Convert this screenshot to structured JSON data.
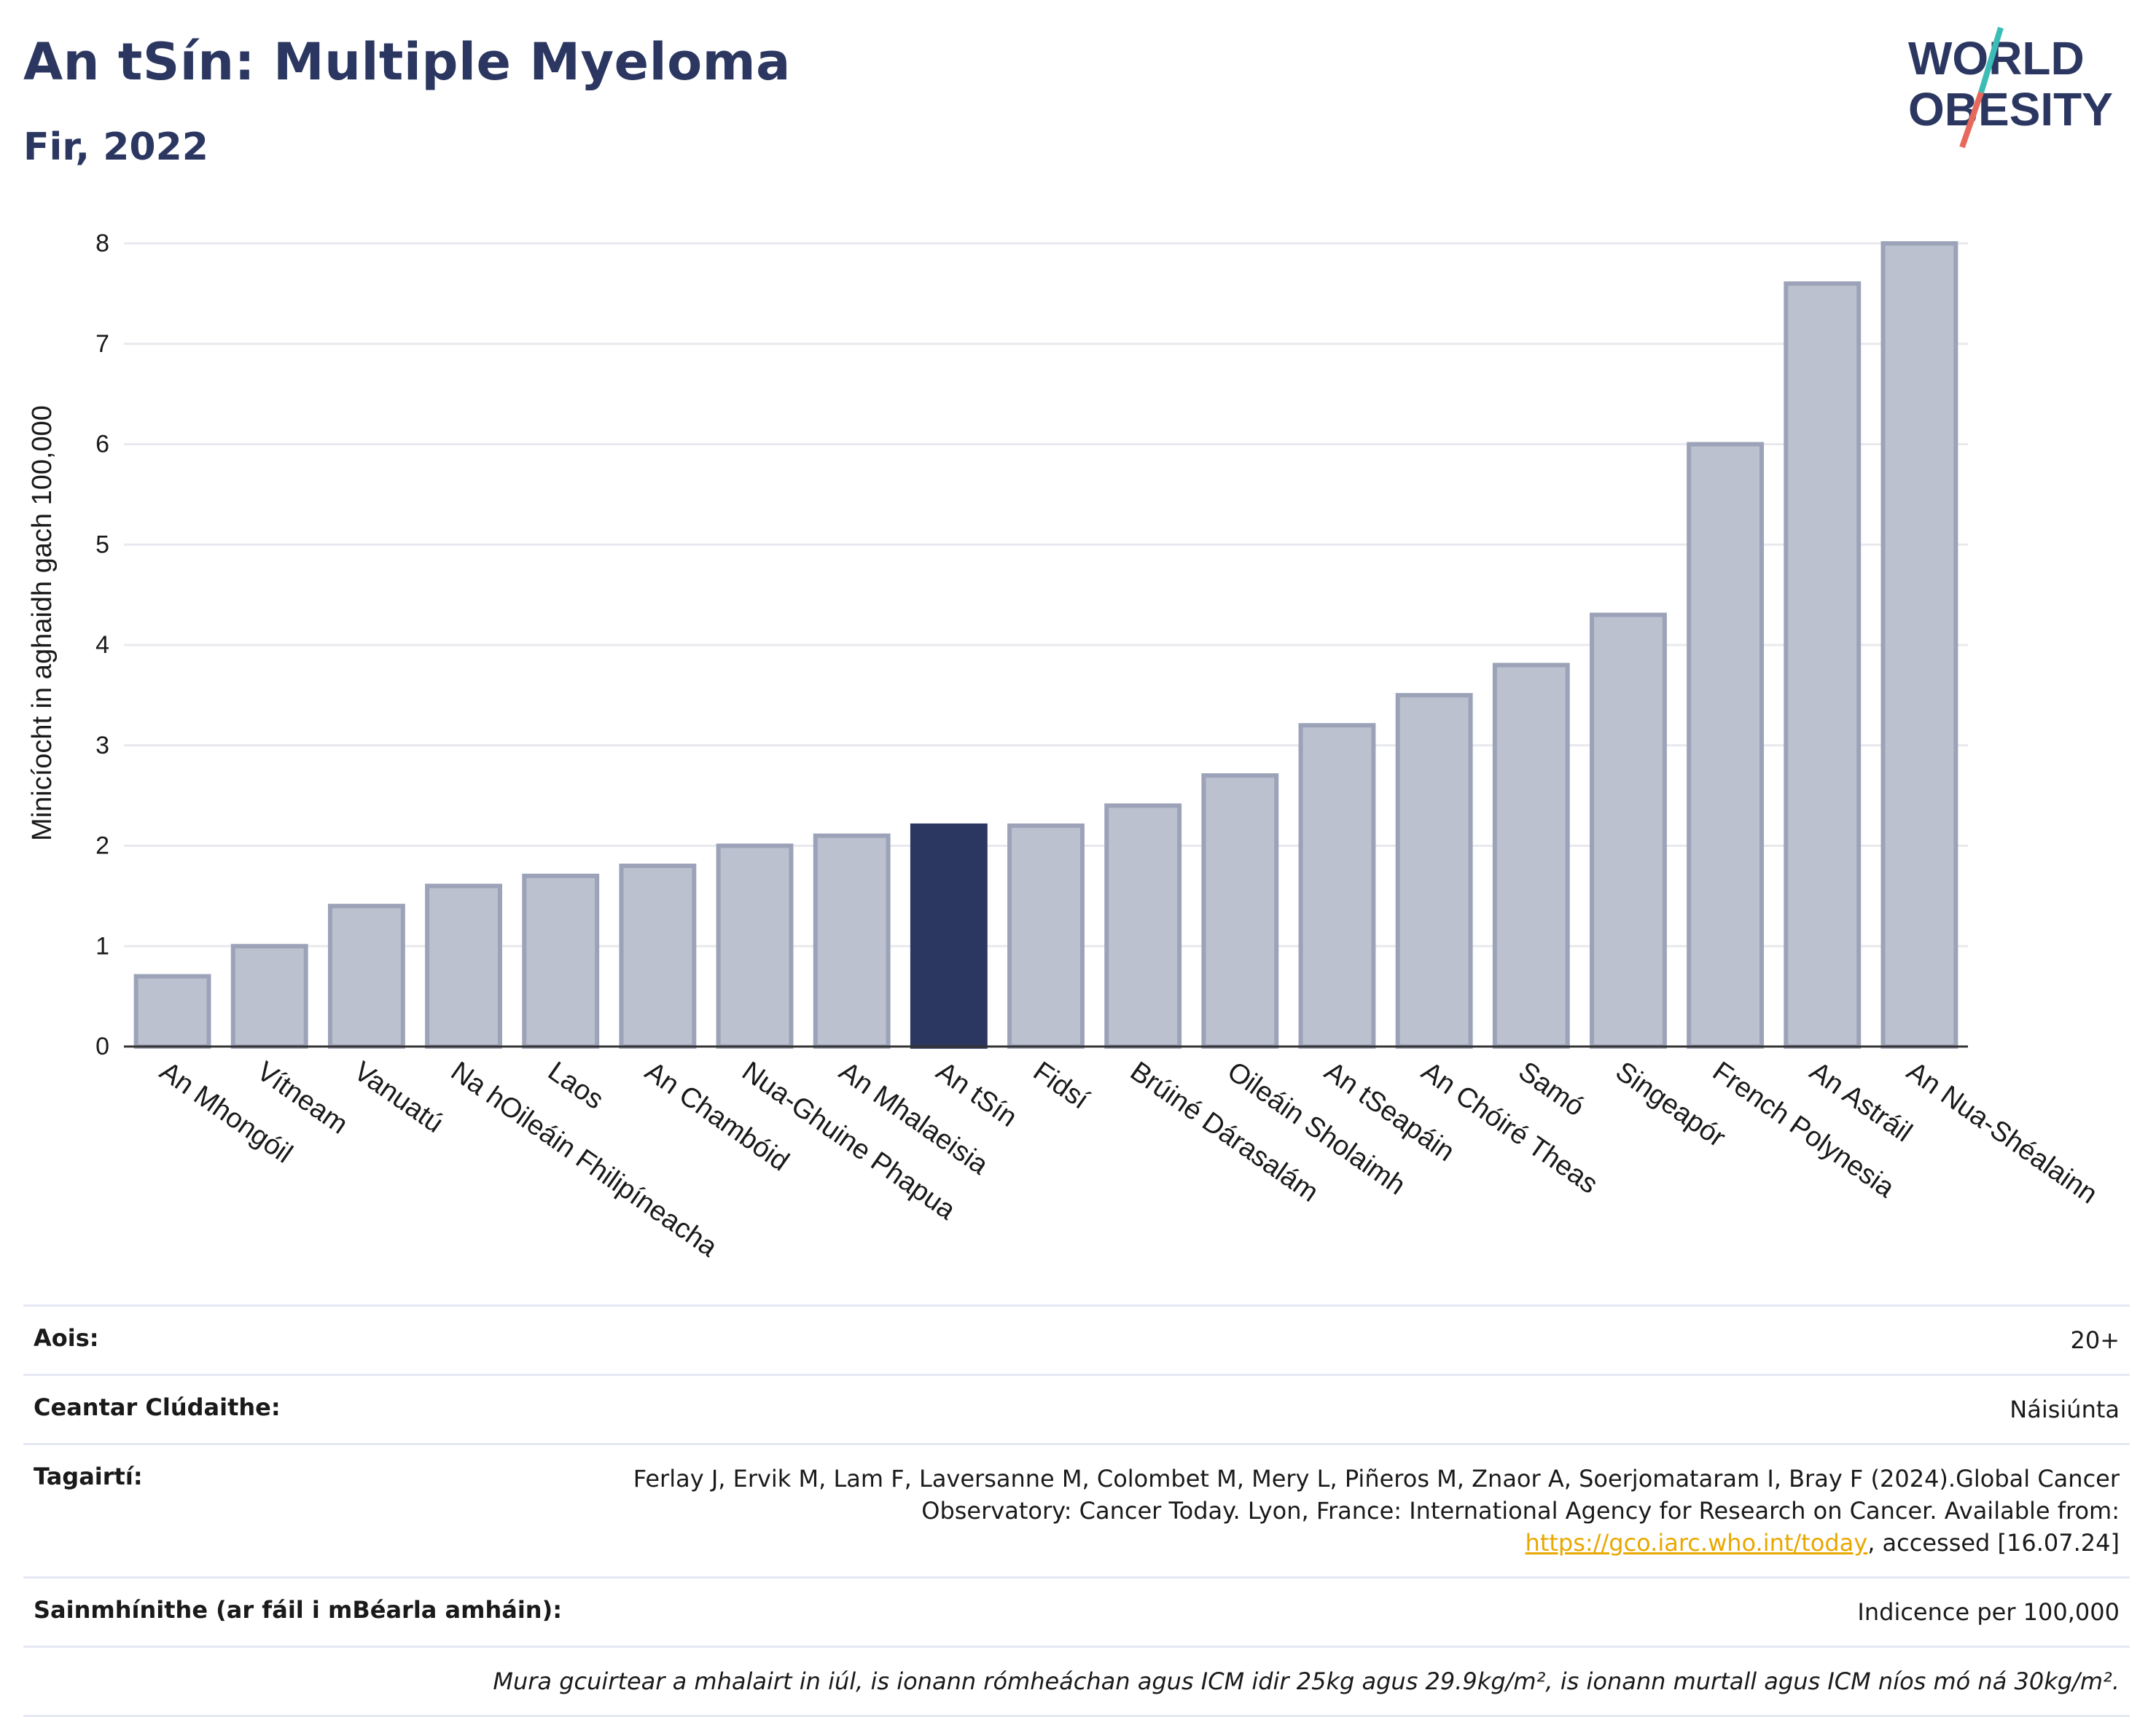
{
  "title": "An tSín: Multiple Myeloma",
  "subtitle": "Fir, 2022",
  "logo": {
    "line1": "WORLD",
    "line2": "OBESITY",
    "colors": {
      "text": "#2b3760",
      "slash_teal": "#3bbcb6",
      "slash_red": "#e8695c"
    }
  },
  "chart_data": {
    "type": "bar",
    "title": "An tSín: Multiple Myeloma",
    "ylabel": "Minicíocht in aghaidh gach 100,000",
    "xlabel": "",
    "ylim": [
      0,
      8
    ],
    "yticks": [
      "0",
      "1",
      "2",
      "3",
      "4",
      "5",
      "6",
      "7",
      "8"
    ],
    "grid": true,
    "highlight": "An tSín",
    "colors": {
      "bar": "#bcc1cf",
      "bar_stroke": "#9ca3b8",
      "highlight": "#2b3760",
      "grid": "#e8e9ee"
    },
    "categories": [
      "An Mhongóil",
      "Vítneam",
      "Vanuatú",
      "Na hOileáin Fhilipíneacha",
      "Laos",
      "An Chambóid",
      "Nua-Ghuine Phapua",
      "An Mhalaeisia",
      "An tSín",
      "Fidsí",
      "Brúiné Dárasalám",
      "Oileáin Sholaimh",
      "An tSeapáin",
      "An Chóiré Theas",
      "Samó",
      "Singeapór",
      "French Polynesia",
      "An Astráil",
      "An Nua-Shéalainn"
    ],
    "values": [
      0.7,
      1.0,
      1.4,
      1.6,
      1.7,
      1.8,
      2.0,
      2.1,
      2.2,
      2.2,
      2.4,
      2.7,
      3.2,
      3.5,
      3.8,
      4.3,
      6.0,
      7.6,
      8.0
    ]
  },
  "meta": {
    "age_label": "Aois:",
    "age_value": "20+",
    "coverage_label": "Ceantar Clúdaithe:",
    "coverage_value": "Náisiúnta",
    "refs_label": "Tagairtí:",
    "refs_text_1": "Ferlay J, Ervik M, Lam F, Laversanne M, Colombet M, Mery L, Piñeros M, Znaor A, Soerjomataram I, Bray F (2024).Global Cancer Observatory: Cancer Today. Lyon, France: International Agency for Research on Cancer. Available from: ",
    "refs_link": "https://gco.iarc.who.int/today",
    "refs_text_2": ", accessed [16.07.24]",
    "defs_label": "Sainmhínithe (ar fáil i mBéarla amháin):",
    "defs_value": "Indicence per 100,000",
    "note": "Mura gcuirtear a mhalairt in iúl, is ionann rómheáchan agus ICM idir 25kg agus 29.9kg/m², is ionann murtall agus ICM níos mó ná 30kg/m²."
  }
}
